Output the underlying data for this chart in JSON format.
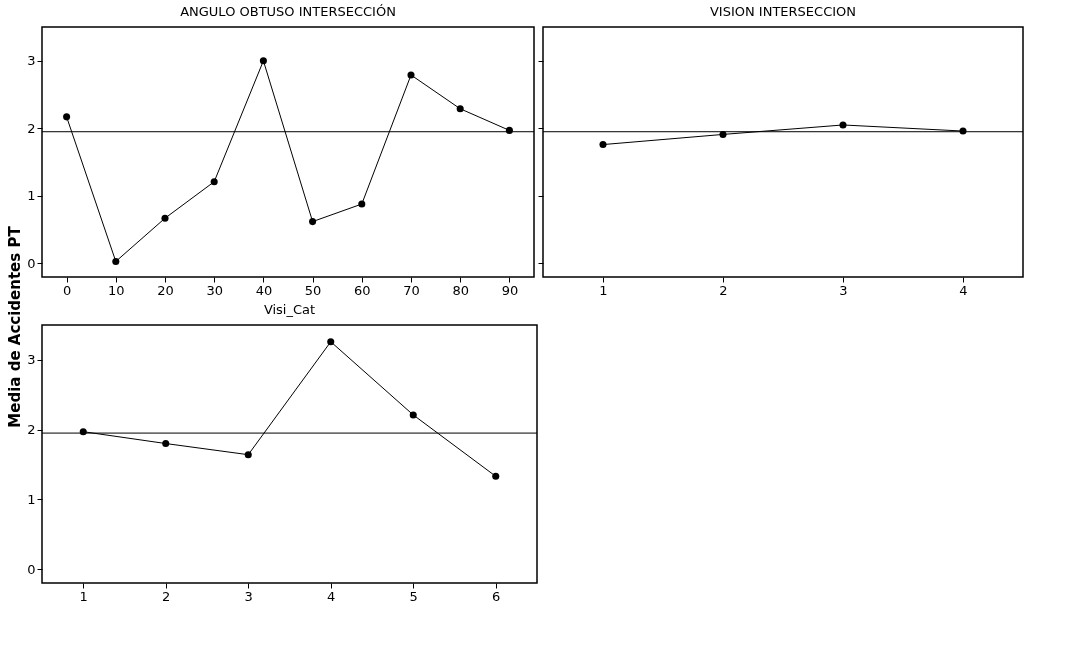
{
  "chart_data": [
    {
      "type": "line",
      "title": "ANGULO OBTUSO INTERSECCIÓN",
      "ylabel": "Media de Accidentes PT",
      "categories": [
        "0",
        "10",
        "20",
        "30",
        "40",
        "50",
        "60",
        "70",
        "80",
        "90"
      ],
      "values": [
        2.17,
        0.03,
        0.67,
        1.21,
        3.0,
        0.62,
        0.88,
        2.79,
        2.29,
        1.97
      ],
      "color": "#000000",
      "marker": "circle",
      "ylim": [
        -0.2,
        3.5
      ],
      "yticks": [
        0,
        1,
        2,
        3
      ],
      "ref_lines": [
        {
          "axis": "y",
          "value": 1.95,
          "color": "#000000"
        }
      ],
      "grid": false
    },
    {
      "type": "line",
      "title": "VISION INTERSECCION",
      "categories": [
        "1",
        "2",
        "3",
        "4"
      ],
      "values": [
        1.76,
        1.91,
        2.05,
        1.96
      ],
      "color": "#000000",
      "marker": "circle",
      "ylim": [
        -0.2,
        3.5
      ],
      "yticks": [
        0,
        1,
        2,
        3
      ],
      "tick_labels": "x",
      "ref_lines": [
        {
          "axis": "y",
          "value": 1.95,
          "color": "#000000"
        }
      ],
      "grid": false
    },
    {
      "type": "line",
      "title": "Visi_Cat",
      "categories": [
        "1",
        "2",
        "3",
        "4",
        "5",
        "6"
      ],
      "values": [
        1.97,
        1.8,
        1.64,
        3.26,
        2.21,
        1.33
      ],
      "color": "#000000",
      "marker": "circle",
      "ylim": [
        -0.2,
        3.5
      ],
      "yticks": [
        0,
        1,
        2,
        3
      ],
      "ref_lines": [
        {
          "axis": "y",
          "value": 1.95,
          "color": "#000000"
        }
      ],
      "grid": false
    }
  ]
}
